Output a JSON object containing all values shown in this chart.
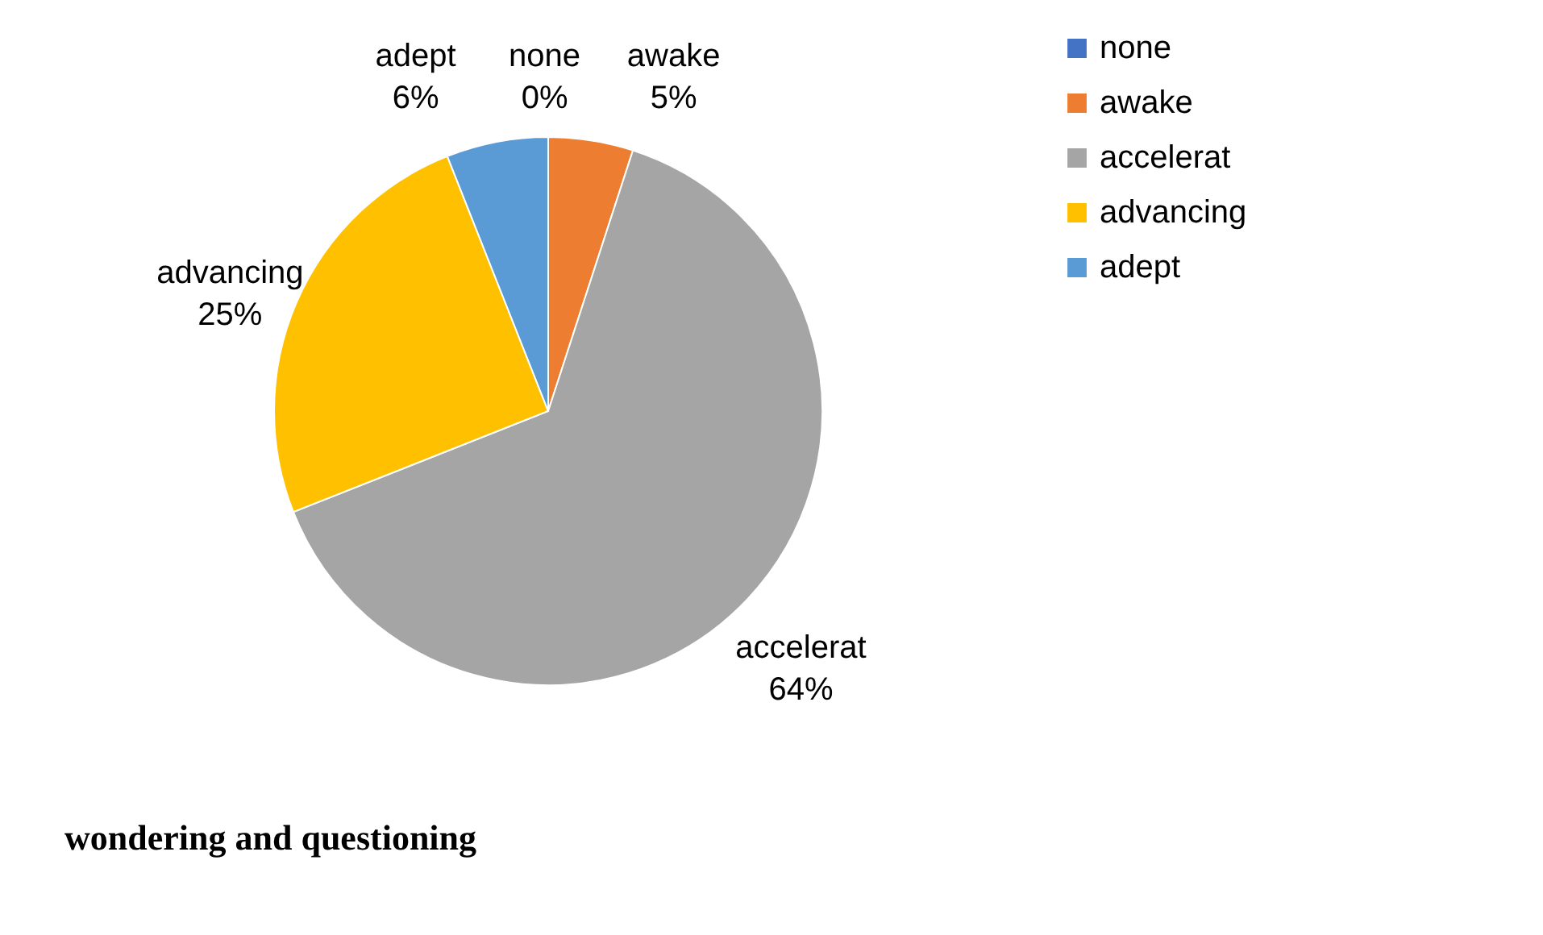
{
  "chart_data": {
    "type": "pie",
    "title": "wondering and questioning",
    "categories": [
      "none",
      "awake",
      "accelerat",
      "advancing",
      "adept"
    ],
    "values": [
      0,
      5,
      64,
      25,
      6
    ],
    "value_labels": [
      "0%",
      "5%",
      "64%",
      "25%",
      "6%"
    ],
    "colors": [
      "#4472c4",
      "#ed7d31",
      "#a5a5a5",
      "#ffc000",
      "#5b9bd5"
    ],
    "legend": "right"
  }
}
